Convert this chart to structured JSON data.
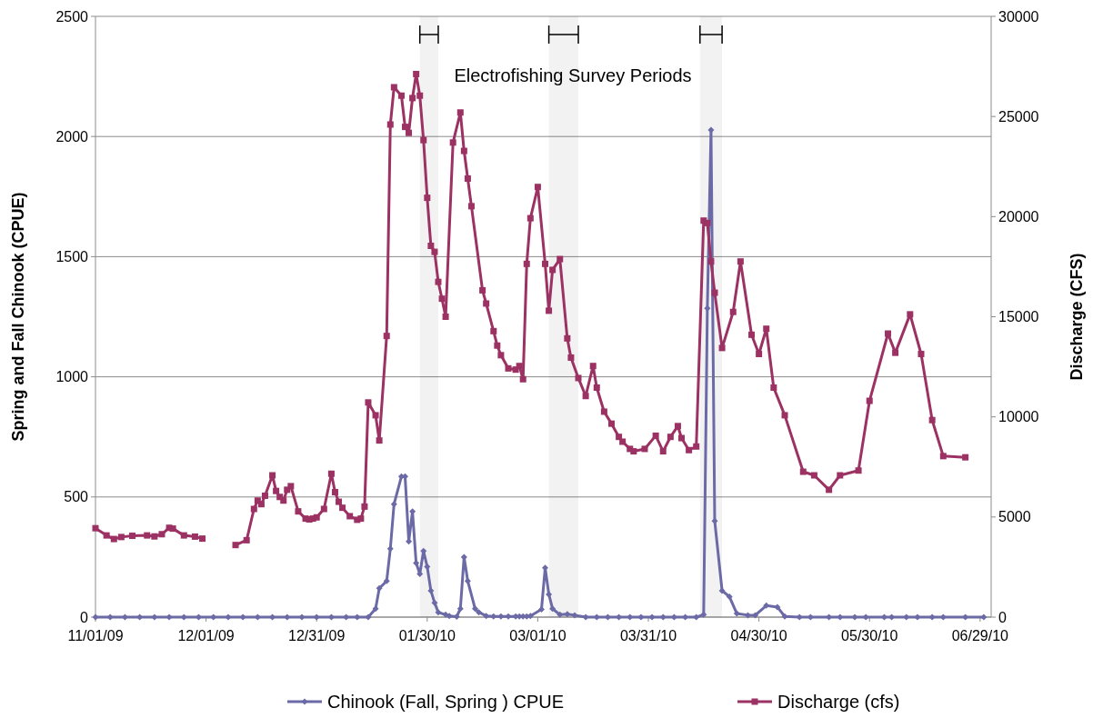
{
  "chart_data": {
    "type": "line",
    "ylabel": "Spring and Fall Chinook (CPUE)",
    "y2label": "Discharge (CFS)",
    "annotations": [
      "Electrofishing Survey Periods"
    ],
    "bands": [
      {
        "axis": "x",
        "from": "2010-01-28",
        "to": "2010-02-02"
      },
      {
        "axis": "x",
        "from": "2010-03-04",
        "to": "2010-03-12"
      },
      {
        "axis": "x",
        "from": "2010-04-14",
        "to": "2010-04-20"
      }
    ],
    "xlim": [
      "2009-11-01",
      "2010-07-02"
    ],
    "xticks": [
      {
        "value": "2009-11-01",
        "label": "11/01/09"
      },
      {
        "value": "2009-12-01",
        "label": "12/01/09"
      },
      {
        "value": "2009-12-31",
        "label": "12/31/09"
      },
      {
        "value": "2010-01-30",
        "label": "01/30/10"
      },
      {
        "value": "2010-03-01",
        "label": "03/01/10"
      },
      {
        "value": "2010-03-31",
        "label": "03/31/10"
      },
      {
        "value": "2010-04-30",
        "label": "04/30/10"
      },
      {
        "value": "2010-05-30",
        "label": "05/30/10"
      },
      {
        "value": "2010-06-29",
        "label": "06/29/10"
      }
    ],
    "ylim": [
      0,
      2500
    ],
    "yticks": [
      0,
      500,
      1000,
      1500,
      2000,
      2500
    ],
    "y2lim": [
      0,
      30000
    ],
    "y2ticks": [
      0,
      5000,
      10000,
      15000,
      20000,
      25000,
      30000
    ],
    "grid": "y",
    "legend": "bottom",
    "series": [
      {
        "name": "Chinook (Fall, Spring ) CPUE",
        "color": "#6b6aa6",
        "marker": "diamond",
        "x": [
          "2009-11-01",
          "2009-11-05",
          "2009-11-09",
          "2009-11-13",
          "2009-11-17",
          "2009-11-21",
          "2009-11-25",
          "2009-11-29",
          "2009-12-03",
          "2009-12-07",
          "2009-12-11",
          "2009-12-15",
          "2009-12-19",
          "2009-12-23",
          "2009-12-27",
          "2009-12-31",
          "2010-01-04",
          "2010-01-08",
          "2010-01-11",
          "2010-01-14",
          "2010-01-16",
          "2010-01-17",
          "2010-01-19",
          "2010-01-20",
          "2010-01-21",
          "2010-01-23",
          "2010-01-24",
          "2010-01-25",
          "2010-01-26",
          "2010-01-27",
          "2010-01-28",
          "2010-01-29",
          "2010-01-30",
          "2010-01-31",
          "2010-02-01",
          "2010-02-02",
          "2010-02-04",
          "2010-02-05",
          "2010-02-07",
          "2010-02-08",
          "2010-02-09",
          "2010-02-10",
          "2010-02-12",
          "2010-02-13",
          "2010-02-15",
          "2010-02-17",
          "2010-02-19",
          "2010-02-21",
          "2010-02-23",
          "2010-02-24",
          "2010-02-25",
          "2010-02-26",
          "2010-02-27",
          "2010-03-02",
          "2010-03-03",
          "2010-03-04",
          "2010-03-05",
          "2010-03-07",
          "2010-03-09",
          "2010-03-11",
          "2010-03-14",
          "2010-03-17",
          "2010-03-20",
          "2010-03-23",
          "2010-03-26",
          "2010-03-29",
          "2010-04-01",
          "2010-04-04",
          "2010-04-07",
          "2010-04-10",
          "2010-04-13",
          "2010-04-15",
          "2010-04-16",
          "2010-04-17",
          "2010-04-18",
          "2010-04-20",
          "2010-04-22",
          "2010-04-24",
          "2010-04-27",
          "2010-04-29",
          "2010-05-02",
          "2010-05-05",
          "2010-05-07",
          "2010-05-11",
          "2010-05-14",
          "2010-05-19",
          "2010-05-22",
          "2010-05-26",
          "2010-05-29",
          "2010-06-03",
          "2010-06-05",
          "2010-06-09",
          "2010-06-12",
          "2010-06-16",
          "2010-06-19",
          "2010-06-25",
          "2010-06-30"
        ],
        "values": [
          0,
          0,
          0,
          0,
          0,
          0,
          0,
          0,
          0,
          0,
          0,
          0,
          0,
          0,
          0,
          0,
          0,
          0,
          0,
          0,
          35,
          120,
          150,
          285,
          470,
          585,
          585,
          315,
          440,
          225,
          180,
          275,
          210,
          110,
          60,
          20,
          10,
          5,
          2,
          35,
          250,
          150,
          35,
          20,
          5,
          3,
          3,
          3,
          3,
          3,
          3,
          3,
          5,
          32,
          205,
          95,
          35,
          10,
          12,
          8,
          0,
          0,
          0,
          0,
          0,
          0,
          0,
          0,
          0,
          0,
          0,
          10,
          1285,
          2027,
          400,
          110,
          85,
          15,
          8,
          8,
          48,
          42,
          3,
          0,
          0,
          0,
          0,
          0,
          0,
          0,
          0,
          0,
          0,
          0,
          0,
          0,
          0
        ]
      },
      {
        "name": "Discharge (cfs)",
        "color": "#9c3163",
        "marker": "square",
        "axis": "y2",
        "x": [
          "2009-11-01",
          "2009-11-04",
          "2009-11-06",
          "2009-11-08",
          "2009-11-11",
          "2009-11-15",
          "2009-11-17",
          "2009-11-19",
          "2009-11-21",
          "2009-11-22",
          "2009-11-25",
          "2009-11-28",
          "2009-11-30",
          "2009-12-05",
          "2009-12-09",
          "2009-12-12",
          "2009-12-14",
          "2009-12-15",
          "2009-12-16",
          "2009-12-17",
          "2009-12-19",
          "2009-12-20",
          "2009-12-21",
          "2009-12-22",
          "2009-12-23",
          "2009-12-24",
          "2009-12-26",
          "2009-12-28",
          "2009-12-29",
          "2009-12-30",
          "2009-12-31",
          "2010-01-02",
          "2010-01-04",
          "2010-01-05",
          "2010-01-06",
          "2010-01-07",
          "2010-01-09",
          "2010-01-11",
          "2010-01-12",
          "2010-01-13",
          "2010-01-14",
          "2010-01-16",
          "2010-01-17",
          "2010-01-19",
          "2010-01-20",
          "2010-01-21",
          "2010-01-23",
          "2010-01-24",
          "2010-01-25",
          "2010-01-26",
          "2010-01-27",
          "2010-01-28",
          "2010-01-29",
          "2010-01-30",
          "2010-01-31",
          "2010-02-01",
          "2010-02-02",
          "2010-02-03",
          "2010-02-04",
          "2010-02-06",
          "2010-02-08",
          "2010-02-09",
          "2010-02-10",
          "2010-02-11",
          "2010-02-14",
          "2010-02-15",
          "2010-02-17",
          "2010-02-18",
          "2010-02-19",
          "2010-02-21",
          "2010-02-23",
          "2010-02-24",
          "2010-02-25",
          "2010-02-26",
          "2010-02-27",
          "2010-03-01",
          "2010-03-03",
          "2010-03-04",
          "2010-03-05",
          "2010-03-07",
          "2010-03-09",
          "2010-03-10",
          "2010-03-12",
          "2010-03-14",
          "2010-03-16",
          "2010-03-17",
          "2010-03-19",
          "2010-03-21",
          "2010-03-23",
          "2010-03-24",
          "2010-03-26",
          "2010-03-27",
          "2010-03-30",
          "2010-04-02",
          "2010-04-04",
          "2010-04-06",
          "2010-04-08",
          "2010-04-09",
          "2010-04-11",
          "2010-04-13",
          "2010-04-15",
          "2010-04-16",
          "2010-04-17",
          "2010-04-18",
          "2010-04-20",
          "2010-04-23",
          "2010-04-25",
          "2010-04-28",
          "2010-04-30",
          "2010-05-02",
          "2010-05-04",
          "2010-05-07",
          "2010-05-12",
          "2010-05-15",
          "2010-05-19",
          "2010-05-22",
          "2010-05-27",
          "2010-05-30",
          "2010-06-04",
          "2010-06-06",
          "2010-06-10",
          "2010-06-13",
          "2010-06-16",
          "2010-06-19",
          "2010-06-25"
        ],
        "values": [
          4440,
          4080,
          3900,
          4000,
          4060,
          4080,
          4030,
          4140,
          4460,
          4420,
          4080,
          4020,
          3920,
          null,
          3600,
          3840,
          5400,
          5820,
          5640,
          6060,
          7080,
          6300,
          6000,
          5820,
          6360,
          6540,
          5280,
          4920,
          4880,
          4920,
          4980,
          5400,
          7160,
          6240,
          5760,
          5460,
          5040,
          4860,
          4920,
          5520,
          10720,
          10080,
          8820,
          14040,
          24600,
          26460,
          26040,
          24480,
          24180,
          25920,
          27120,
          26040,
          23820,
          20940,
          18540,
          18240,
          16740,
          15900,
          15000,
          23700,
          25200,
          23280,
          21900,
          20520,
          16320,
          15660,
          14280,
          13560,
          13080,
          12420,
          12360,
          12540,
          11880,
          17640,
          19920,
          21480,
          17640,
          15300,
          17340,
          17880,
          13920,
          12960,
          11940,
          11040,
          12540,
          11460,
          10260,
          9660,
          9000,
          8760,
          8400,
          8280,
          8400,
          9060,
          8280,
          9000,
          9540,
          8940,
          8340,
          8520,
          19800,
          19680,
          17760,
          16200,
          13440,
          15240,
          17760,
          14100,
          13140,
          14400,
          11460,
          10080,
          7260,
          7080,
          6360,
          7080,
          7320,
          10800,
          14160,
          13200,
          15120,
          13140,
          9840,
          8040,
          7980
        ]
      }
    ]
  }
}
